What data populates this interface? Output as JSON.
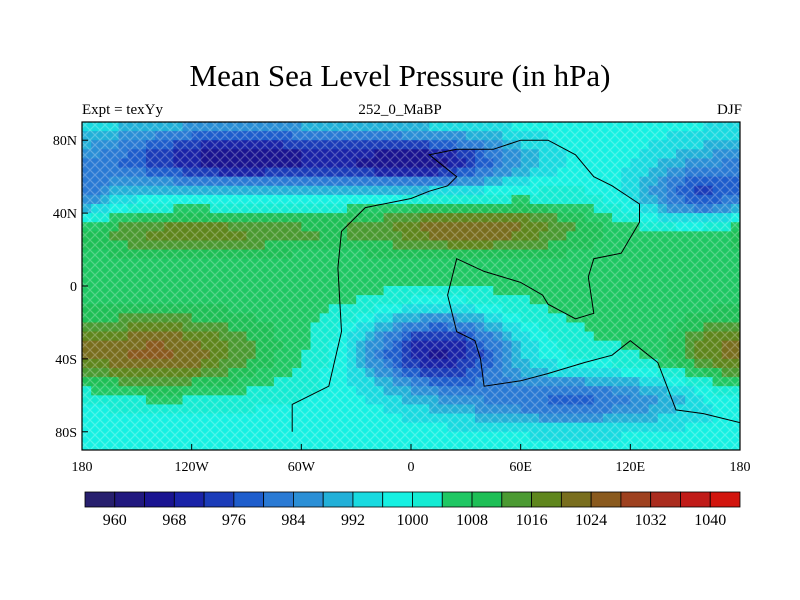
{
  "title": "Mean Sea Level Pressure (in hPa)",
  "subtitle_left": "Expt = texYy",
  "subtitle_center": "252_0_MaBP",
  "subtitle_right": "DJF",
  "map": {
    "projection": "cylindrical-equidistant",
    "lon_range": [
      -180,
      180
    ],
    "lat_range": [
      -90,
      90
    ],
    "x_ticks": [
      {
        "value": -180,
        "label": "180"
      },
      {
        "value": -120,
        "label": "120W"
      },
      {
        "value": -60,
        "label": "60W"
      },
      {
        "value": 0,
        "label": "0"
      },
      {
        "value": 60,
        "label": "60E"
      },
      {
        "value": 120,
        "label": "120E"
      },
      {
        "value": 180,
        "label": "180"
      }
    ],
    "y_ticks": [
      {
        "value": 80,
        "label": "80N"
      },
      {
        "value": 40,
        "label": "40N"
      },
      {
        "value": 0,
        "label": "0"
      },
      {
        "value": -40,
        "label": "40S"
      },
      {
        "value": -80,
        "label": "80S"
      }
    ],
    "field": "mean sea level pressure",
    "units": "hPa",
    "pressure_systems": [
      {
        "lon": -95,
        "lat": 70,
        "value": 968,
        "spread_lon": 55,
        "spread_lat": 12
      },
      {
        "lon": 10,
        "lat": 68,
        "value": 974,
        "spread_lon": 35,
        "spread_lat": 10
      },
      {
        "lon": 160,
        "lat": 50,
        "value": 978,
        "spread_lon": 25,
        "spread_lat": 12
      },
      {
        "lon": 15,
        "lat": -35,
        "value": 966,
        "spread_lon": 30,
        "spread_lat": 15
      },
      {
        "lon": 90,
        "lat": -62,
        "value": 982,
        "spread_lon": 45,
        "spread_lat": 10
      },
      {
        "lon": -140,
        "lat": -38,
        "value": 1024,
        "spread_lon": 40,
        "spread_lat": 14
      },
      {
        "lon": -120,
        "lat": 30,
        "value": 1016,
        "spread_lon": 55,
        "spread_lat": 8
      },
      {
        "lon": 35,
        "lat": 32,
        "value": 1022,
        "spread_lon": 40,
        "spread_lat": 9
      },
      {
        "lon": 165,
        "lat": -35,
        "value": 1010,
        "spread_lon": 15,
        "spread_lat": 10
      }
    ],
    "coastline": [
      [
        -65,
        -80
      ],
      [
        -65,
        -65
      ],
      [
        -45,
        -55
      ],
      [
        -38,
        -25
      ],
      [
        -40,
        10
      ],
      [
        -38,
        30
      ],
      [
        -25,
        43
      ],
      [
        0,
        48
      ],
      [
        10,
        52
      ],
      [
        20,
        55
      ],
      [
        25,
        60
      ],
      [
        10,
        72
      ],
      [
        25,
        75
      ],
      [
        45,
        75
      ],
      [
        60,
        80
      ],
      [
        75,
        80
      ],
      [
        90,
        72
      ],
      [
        100,
        60
      ],
      [
        110,
        55
      ],
      [
        125,
        45
      ],
      [
        125,
        35
      ],
      [
        115,
        18
      ],
      [
        100,
        15
      ],
      [
        97,
        5
      ],
      [
        100,
        -15
      ],
      [
        90,
        -18
      ],
      [
        75,
        -10
      ],
      [
        72,
        -5
      ],
      [
        60,
        2
      ],
      [
        50,
        5
      ],
      [
        40,
        8
      ],
      [
        25,
        15
      ],
      [
        20,
        -5
      ],
      [
        25,
        -25
      ],
      [
        35,
        -30
      ],
      [
        38,
        -40
      ],
      [
        40,
        -55
      ],
      [
        60,
        -52
      ],
      [
        75,
        -48
      ],
      [
        95,
        -42
      ],
      [
        110,
        -38
      ],
      [
        120,
        -30
      ],
      [
        135,
        -42
      ],
      [
        140,
        -55
      ],
      [
        145,
        -68
      ],
      [
        160,
        -70
      ],
      [
        180,
        -75
      ]
    ]
  },
  "colorbar": {
    "labels": [
      "960",
      "968",
      "976",
      "984",
      "992",
      "1000",
      "1008",
      "1016",
      "1024",
      "1032",
      "1040"
    ],
    "levels": [
      956,
      960,
      964,
      968,
      972,
      976,
      980,
      984,
      988,
      992,
      996,
      1000,
      1004,
      1008,
      1012,
      1016,
      1020,
      1024,
      1028,
      1032,
      1036,
      1040,
      1044
    ],
    "colors": [
      "#271f6e",
      "#21187f",
      "#1a1491",
      "#1a23a8",
      "#1b3cb9",
      "#1e5dcc",
      "#2a7ad4",
      "#2b8fd6",
      "#22b0d8",
      "#19dae0",
      "#16f0e2",
      "#14ebd3",
      "#1fc763",
      "#1ebf56",
      "#4b9a32",
      "#5f861d",
      "#796e1e",
      "#8a5a1e",
      "#9e411f",
      "#aa2c1e",
      "#c01b18",
      "#d2150e"
    ]
  }
}
